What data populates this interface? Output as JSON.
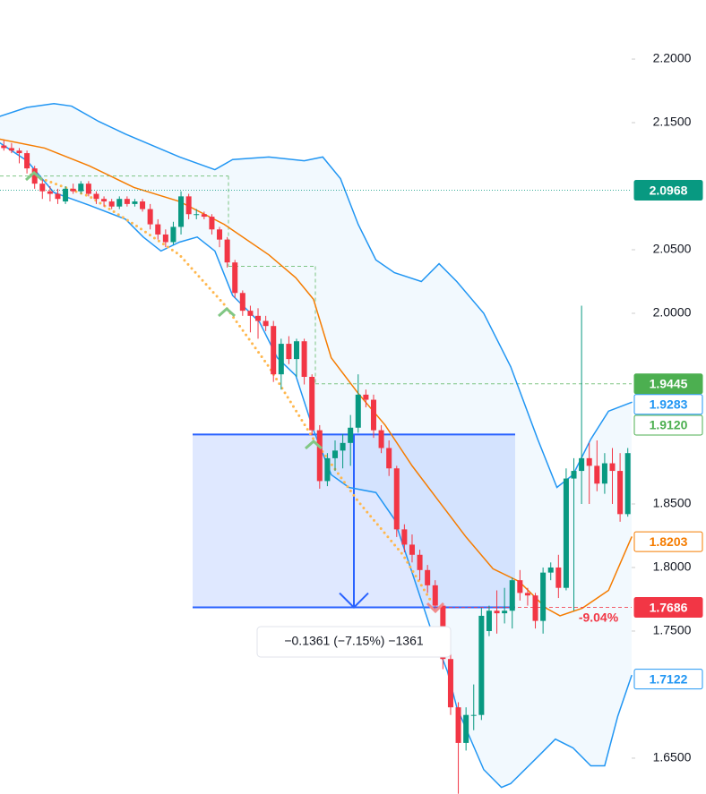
{
  "chart_data": {
    "type": "candlestick",
    "ylim": [
      1.6218,
      2.2465
    ],
    "yticks": [
      {
        "value": 2.2,
        "label": "2.2000"
      },
      {
        "value": 2.15,
        "label": "2.1500"
      },
      {
        "value": 2.05,
        "label": "2.0500"
      },
      {
        "value": 2.0,
        "label": "2.0000"
      },
      {
        "value": 1.85,
        "label": "1.8500"
      },
      {
        "value": 1.8,
        "label": "1.8000"
      },
      {
        "value": 1.75,
        "label": "1.7500"
      },
      {
        "value": 1.65,
        "label": "1.6500"
      }
    ],
    "up_color": "#089981",
    "down_color": "#f23645",
    "candles": {
      "open": [
        2.132,
        2.13,
        2.128,
        2.126,
        2.114,
        2.102,
        2.096,
        2.094,
        2.088,
        2.098,
        2.096,
        2.102,
        2.094,
        2.09,
        2.088,
        2.084,
        2.09,
        2.086,
        2.088,
        2.082,
        2.07,
        2.062,
        2.056,
        2.068,
        2.092,
        2.078,
        2.078,
        2.076,
        2.066,
        2.058,
        2.04,
        2.016,
        2.002,
        1.998,
        1.994,
        1.99,
        1.952,
        1.976,
        1.964,
        1.978,
        1.95,
        1.908,
        1.868,
        1.886,
        1.892,
        1.898,
        1.91,
        1.936,
        1.932,
        1.908,
        1.894,
        1.878,
        1.83,
        1.818,
        1.81,
        1.798,
        1.786,
        1.77,
        1.728,
        1.69,
        1.662,
        1.684,
        1.684,
        1.75,
        1.766,
        1.764,
        1.766,
        1.79,
        1.78,
        1.778,
        1.758,
        1.796,
        1.8,
        1.784,
        1.87,
        1.876,
        1.886,
        1.88,
        1.866,
        1.882,
        1.876,
        1.842
      ],
      "high": [
        2.136,
        2.134,
        2.13,
        2.128,
        2.116,
        2.106,
        2.1,
        2.098,
        2.1,
        2.102,
        2.104,
        2.104,
        2.096,
        2.092,
        2.09,
        2.092,
        2.092,
        2.09,
        2.09,
        2.086,
        2.074,
        2.066,
        2.072,
        2.096,
        2.094,
        2.082,
        2.08,
        2.078,
        2.068,
        2.06,
        2.042,
        2.018,
        2.006,
        2.004,
        1.998,
        1.994,
        1.98,
        1.982,
        1.98,
        1.98,
        1.952,
        1.912,
        1.89,
        1.9,
        1.905,
        1.92,
        1.952,
        1.94,
        1.936,
        1.912,
        1.9,
        1.88,
        1.834,
        1.826,
        1.814,
        1.802,
        1.79,
        1.772,
        1.732,
        1.694,
        1.69,
        1.708,
        1.768,
        1.77,
        1.782,
        1.784,
        1.792,
        1.798,
        1.784,
        1.78,
        1.8,
        1.804,
        1.81,
        1.878,
        1.886,
        2.006,
        1.898,
        1.9,
        1.89,
        1.894,
        1.89,
        1.894
      ],
      "low": [
        2.128,
        2.126,
        2.118,
        2.11,
        2.098,
        2.09,
        2.088,
        2.086,
        2.086,
        2.094,
        2.094,
        2.092,
        2.086,
        2.084,
        2.082,
        2.082,
        2.084,
        2.084,
        2.08,
        2.066,
        2.058,
        2.052,
        2.054,
        2.062,
        2.074,
        2.074,
        2.074,
        2.062,
        2.052,
        2.036,
        2.012,
        1.998,
        1.985,
        1.98,
        1.986,
        1.946,
        1.94,
        1.96,
        1.95,
        1.944,
        1.904,
        1.862,
        1.864,
        1.876,
        1.878,
        1.88,
        1.906,
        1.926,
        1.902,
        1.89,
        1.872,
        1.824,
        1.812,
        1.804,
        1.79,
        1.78,
        1.766,
        1.72,
        1.684,
        1.622,
        1.656,
        1.672,
        1.68,
        1.746,
        1.748,
        1.756,
        1.752,
        1.774,
        1.77,
        1.752,
        1.748,
        1.79,
        1.776,
        1.782,
        1.766,
        1.85,
        1.85,
        1.86,
        1.858,
        1.85,
        1.836,
        1.84
      ],
      "close": [
        2.13,
        2.128,
        2.126,
        2.114,
        2.102,
        2.096,
        2.094,
        2.09,
        2.098,
        2.096,
        2.102,
        2.094,
        2.09,
        2.088,
        2.084,
        2.09,
        2.086,
        2.088,
        2.082,
        2.07,
        2.062,
        2.056,
        2.068,
        2.092,
        2.078,
        2.078,
        2.076,
        2.066,
        2.058,
        2.04,
        2.016,
        2.002,
        1.998,
        1.994,
        1.99,
        1.952,
        1.976,
        1.964,
        1.978,
        1.95,
        1.908,
        1.868,
        1.886,
        1.892,
        1.898,
        1.91,
        1.936,
        1.932,
        1.908,
        1.894,
        1.878,
        1.83,
        1.818,
        1.81,
        1.798,
        1.786,
        1.77,
        1.728,
        1.69,
        1.662,
        1.684,
        1.684,
        1.762,
        1.766,
        1.764,
        1.766,
        1.79,
        1.78,
        1.778,
        1.758,
        1.796,
        1.8,
        1.784,
        1.87,
        1.876,
        1.886,
        1.88,
        1.866,
        1.882,
        1.876,
        1.842,
        1.89
      ]
    },
    "lines": [
      {
        "color": "#2196f3",
        "x": [
          0,
          3.5,
          7,
          9.3,
          12.8,
          16.3,
          23.3,
          27.9,
          30.2,
          34.9,
          39.5,
          41.9,
          44.2,
          46.5,
          48.8,
          51.2,
          54.7,
          57,
          59.3,
          62.8,
          66.3,
          69.8,
          72.3,
          74.4,
          76.7,
          79,
          82
        ],
        "values": [
          2.155,
          2.162,
          2.165,
          2.163,
          2.151,
          2.141,
          2.123,
          2.113,
          2.121,
          2.123,
          2.12,
          2.123,
          2.106,
          2.07,
          2.042,
          2.032,
          2.025,
          2.039,
          2.025,
          2.0,
          1.958,
          1.901,
          1.863,
          1.873,
          1.901,
          1.923,
          1.93
        ]
      },
      {
        "color": "#2196f3",
        "x": [
          0,
          3.5,
          7,
          11.6,
          16.3,
          18.6,
          20.9,
          23.3,
          25.6,
          27.9,
          30.2,
          33.7,
          36,
          38.4,
          40.7,
          43,
          45.3,
          48.8,
          51.2,
          53.5,
          55.8,
          58.1,
          59.3,
          62.8,
          65.1,
          66.3,
          69.8,
          72.1,
          74.4,
          76.7,
          78.5,
          80.2,
          82
        ],
        "values": [
          2.134,
          2.12,
          2.095,
          2.085,
          2.074,
          2.06,
          2.049,
          2.056,
          2.06,
          2.049,
          2.014,
          1.993,
          1.965,
          1.951,
          1.908,
          1.873,
          1.863,
          1.859,
          1.838,
          1.796,
          1.754,
          1.718,
          1.69,
          1.641,
          1.627,
          1.63,
          1.651,
          1.665,
          1.658,
          1.644,
          1.644,
          1.683,
          1.715
        ]
      },
      {
        "color": "#f57c00",
        "x": [
          0,
          5.8,
          11.6,
          17.4,
          23.3,
          29.1,
          34.9,
          38.4,
          40.7,
          43,
          46.5,
          50,
          53.5,
          57,
          60.5,
          64,
          67.4,
          70.9,
          72.7,
          75.6,
          79,
          82
        ],
        "values": [
          2.137,
          2.13,
          2.116,
          2.099,
          2.088,
          2.07,
          2.046,
          2.028,
          2.011,
          1.965,
          1.937,
          1.912,
          1.88,
          1.852,
          1.824,
          1.799,
          1.789,
          1.768,
          1.762,
          1.768,
          1.782,
          1.824
        ]
      },
      {
        "color": "#ffb74d",
        "dotted": true,
        "x": [
          4,
          11.6,
          17.4,
          23.3,
          29.1,
          34.9,
          40.7,
          46.5,
          52.3,
          55.8
        ],
        "values": [
          2.109,
          2.092,
          2.07,
          2.046,
          2.007,
          1.958,
          1.901,
          1.852,
          1.81,
          1.775
        ]
      }
    ],
    "stop_levels": [
      2.108,
      2.037,
      1.9445
    ],
    "price_labels": [
      {
        "price": 2.0968,
        "color": "#089981",
        "filled": true
      },
      {
        "price": 1.9445,
        "color": "#4caf50",
        "filled": true
      },
      {
        "price": 1.9283,
        "color": "#2196f3",
        "filled": false
      },
      {
        "price": {
          "value": 1.912,
          "label": "1.9120"
        },
        "color": "#4caf50",
        "filled": false
      },
      {
        "price": 1.8203,
        "color": "#f57c00",
        "filled": false
      },
      {
        "price": 1.7686,
        "color": "#f23645",
        "filled": true
      },
      {
        "price": 1.7122,
        "color": "#2196f3",
        "filled": false
      }
    ],
    "measure": {
      "top": 1.9047,
      "bottom": 1.7686,
      "label": "−0.1361 (−7.15%) −1361",
      "color": "#2962ff"
    },
    "annotation": {
      "text": "-9.04%",
      "color": "#f23645"
    }
  }
}
